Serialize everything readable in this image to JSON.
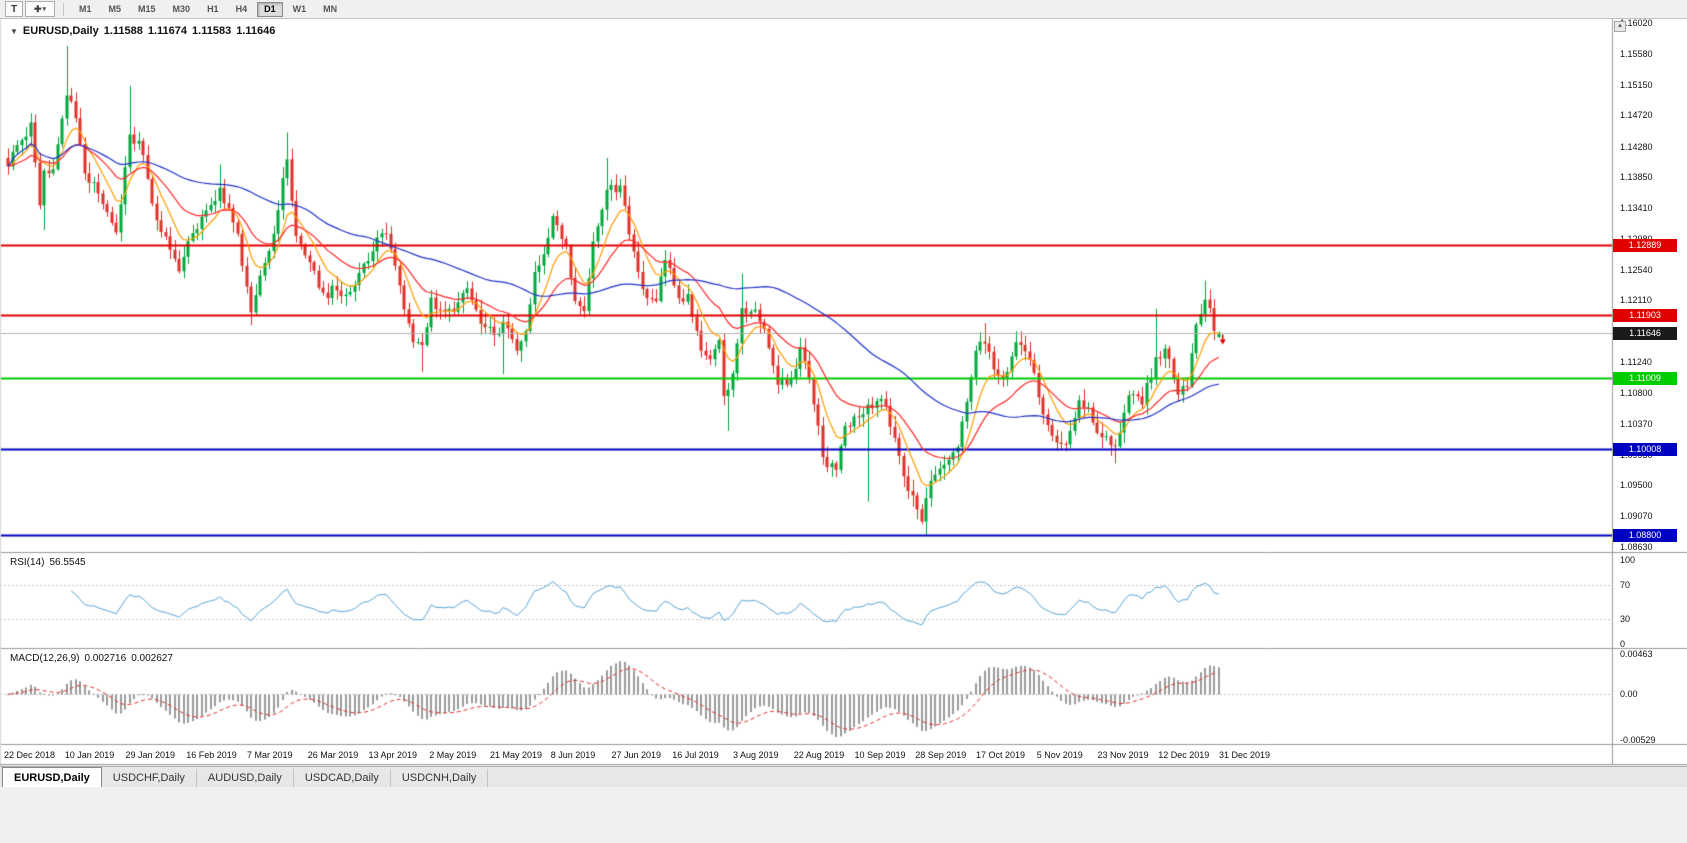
{
  "colors": {
    "candle_up": "#00A83C",
    "candle_down": "#E1312B",
    "background": "#ffffff",
    "chrome": "#f0f0f0",
    "current_price_line": "#b4b4b4"
  },
  "toolbar": {
    "text_tool_label": "T",
    "timeframes": [
      "M1",
      "M5",
      "M15",
      "M30",
      "H1",
      "H4",
      "D1",
      "W1",
      "MN"
    ],
    "active_timeframe": "D1"
  },
  "chart": {
    "title": {
      "symbol": "EURUSD,Daily",
      "open": "1.11588",
      "high": "1.11674",
      "low": "1.11583",
      "close": "1.11646"
    },
    "price_axis_labels": [
      "1.16020",
      "1.15580",
      "1.15150",
      "1.14720",
      "1.14280",
      "1.13850",
      "1.13410",
      "1.12980",
      "1.12540",
      "1.12110",
      "1.11680",
      "1.11240",
      "1.10800",
      "1.10370",
      "1.09930",
      "1.09500",
      "1.09070",
      "1.08630"
    ],
    "levels": [
      {
        "name": "resistance-line-1",
        "price": 1.12889,
        "label": "1.12889",
        "color": "#E00000",
        "width": 2
      },
      {
        "name": "resistance-line-2",
        "price": 1.11903,
        "label": "1.11903",
        "color": "#E00000",
        "width": 2
      },
      {
        "name": "support-line-green",
        "price": 1.11009,
        "label": "1.11009",
        "color": "#00CC00",
        "width": 2
      },
      {
        "name": "support-line-blue-1",
        "price": 1.10008,
        "label": "1.10008",
        "color": "#0000C0",
        "width": 2
      },
      {
        "name": "support-line-blue-2",
        "price": 1.088,
        "label": "1.08800",
        "color": "#0000C0",
        "width": 2
      }
    ],
    "current_price": {
      "value": 1.11646,
      "label": "1.11646",
      "badge_bg": "#1a1a1a"
    }
  },
  "rsi": {
    "name": "RSI(14)",
    "value": "56.5545",
    "axis_labels": [
      "100",
      "70",
      "30",
      "0"
    ],
    "levels": [
      70,
      30
    ],
    "line_color": "#58A6D8"
  },
  "macd": {
    "name": "MACD(12,26,9)",
    "main_value": "0.002716",
    "signal_value": "0.002627",
    "axis_labels": [
      "0.00463",
      "0.00",
      "-0.00529"
    ],
    "histogram_color": "#9B9B9B",
    "signal_color": "#E03131"
  },
  "date_axis": [
    "22 Dec 2018",
    "10 Jan 2019",
    "29 Jan 2019",
    "16 Feb 2019",
    "7 Mar 2019",
    "26 Mar 2019",
    "13 Apr 2019",
    "2 May 2019",
    "21 May 2019",
    "8 Jun 2019",
    "27 Jun 2019",
    "16 Jul 2019",
    "3 Aug 2019",
    "22 Aug 2019",
    "10 Sep 2019",
    "28 Sep 2019",
    "17 Oct 2019",
    "5 Nov 2019",
    "23 Nov 2019",
    "12 Dec 2019",
    "31 Dec 2019"
  ],
  "tabs": [
    {
      "label": "EURUSD,Daily",
      "active": true
    },
    {
      "label": "USDCHF,Daily",
      "active": false
    },
    {
      "label": "AUDUSD,Daily",
      "active": false
    },
    {
      "label": "USDCAD,Daily",
      "active": false
    },
    {
      "label": "USDCNH,Daily",
      "active": false
    }
  ],
  "chart_data": {
    "type": "candlestick",
    "symbol": "EURUSD",
    "timeframe": "D1",
    "bar_count": 270,
    "plot_bar_span": 1215,
    "price_scale": {
      "top": 1.1608,
      "bottom": 1.0856
    },
    "macd_scale": {
      "max": 0.00463,
      "min": -0.00529
    },
    "last_bar": {
      "open": 1.11588,
      "high": 1.11674,
      "low": 1.11583,
      "close": 1.11646
    },
    "close_anchors": [
      [
        0,
        1.14
      ],
      [
        3,
        1.1437
      ],
      [
        5,
        1.1462
      ],
      [
        7,
        1.1345
      ],
      [
        8,
        1.1394
      ],
      [
        10,
        1.1396
      ],
      [
        13,
        1.15
      ],
      [
        15,
        1.1468
      ],
      [
        17,
        1.139
      ],
      [
        20,
        1.1362
      ],
      [
        24,
        1.1307
      ],
      [
        27,
        1.1445
      ],
      [
        29,
        1.1436
      ],
      [
        33,
        1.1324
      ],
      [
        38,
        1.1252
      ],
      [
        40,
        1.1295
      ],
      [
        44,
        1.1338
      ],
      [
        47,
        1.137
      ],
      [
        51,
        1.1305
      ],
      [
        54,
        1.1194
      ],
      [
        56,
        1.1246
      ],
      [
        59,
        1.1305
      ],
      [
        62,
        1.141
      ],
      [
        64,
        1.1302
      ],
      [
        67,
        1.1265
      ],
      [
        70,
        1.1222
      ],
      [
        73,
        1.1225
      ],
      [
        76,
        1.1223
      ],
      [
        79,
        1.1263
      ],
      [
        82,
        1.13
      ],
      [
        84,
        1.1305
      ],
      [
        87,
        1.1232
      ],
      [
        90,
        1.1152
      ],
      [
        92,
        1.1148
      ],
      [
        94,
        1.1215
      ],
      [
        96,
        1.1198
      ],
      [
        99,
        1.1195
      ],
      [
        102,
        1.1228
      ],
      [
        105,
        1.1178
      ],
      [
        108,
        1.1162
      ],
      [
        110,
        1.1181
      ],
      [
        113,
        1.114
      ],
      [
        115,
        1.1168
      ],
      [
        117,
        1.1251
      ],
      [
        119,
        1.1276
      ],
      [
        121,
        1.133
      ],
      [
        124,
        1.1288
      ],
      [
        126,
        1.121
      ],
      [
        128,
        1.1196
      ],
      [
        130,
        1.1294
      ],
      [
        133,
        1.1367
      ],
      [
        136,
        1.1373
      ],
      [
        139,
        1.128
      ],
      [
        141,
        1.1227
      ],
      [
        144,
        1.121
      ],
      [
        146,
        1.1268
      ],
      [
        149,
        1.1214
      ],
      [
        151,
        1.122
      ],
      [
        154,
        1.114
      ],
      [
        156,
        1.1128
      ],
      [
        158,
        1.1155
      ],
      [
        159,
        1.1076
      ],
      [
        160,
        1.1085
      ],
      [
        161,
        1.1108
      ],
      [
        163,
        1.12
      ],
      [
        166,
        1.1198
      ],
      [
        168,
        1.1171
      ],
      [
        171,
        1.1092
      ],
      [
        174,
        1.11
      ],
      [
        176,
        1.1145
      ],
      [
        178,
        1.11
      ],
      [
        181,
        1.099
      ],
      [
        184,
        1.0972
      ],
      [
        186,
        1.1034
      ],
      [
        189,
        1.1046
      ],
      [
        191,
        1.1064
      ],
      [
        194,
        1.1072
      ],
      [
        197,
        1.1017
      ],
      [
        200,
        1.0942
      ],
      [
        203,
        1.0899
      ],
      [
        204,
        1.0932
      ],
      [
        206,
        1.0965
      ],
      [
        208,
        1.0979
      ],
      [
        211,
        1.1004
      ],
      [
        212,
        1.104
      ],
      [
        215,
        1.114
      ],
      [
        217,
        1.115
      ],
      [
        220,
        1.1105
      ],
      [
        222,
        1.111
      ],
      [
        224,
        1.1152
      ],
      [
        227,
        1.1127
      ],
      [
        229,
        1.1074
      ],
      [
        232,
        1.102
      ],
      [
        235,
        1.1008
      ],
      [
        238,
        1.107
      ],
      [
        240,
        1.106
      ],
      [
        243,
        1.1018
      ],
      [
        246,
        1.1005
      ],
      [
        249,
        1.1077
      ],
      [
        252,
        1.1064
      ],
      [
        255,
        1.1131
      ],
      [
        257,
        1.1143
      ],
      [
        260,
        1.1078
      ],
      [
        262,
        1.109
      ],
      [
        264,
        1.1177
      ],
      [
        266,
        1.1212
      ],
      [
        267,
        1.12
      ],
      [
        268,
        1.1168
      ],
      [
        269,
        1.11646
      ]
    ],
    "extreme_wicks": [
      [
        8,
        "low",
        1.131
      ],
      [
        13,
        "high",
        1.157
      ],
      [
        27,
        "high",
        1.1514
      ],
      [
        47,
        "high",
        1.1403
      ],
      [
        54,
        "low",
        1.1176
      ],
      [
        62,
        "high",
        1.1448
      ],
      [
        92,
        "low",
        1.111
      ],
      [
        110,
        "low",
        1.1107
      ],
      [
        133,
        "high",
        1.1412
      ],
      [
        160,
        "low",
        1.1027
      ],
      [
        163,
        "high",
        1.1249
      ],
      [
        191,
        "low",
        1.0927
      ],
      [
        204,
        "low",
        1.0879
      ],
      [
        217,
        "high",
        1.1179
      ],
      [
        246,
        "low",
        1.0981
      ],
      [
        255,
        "high",
        1.1199
      ],
      [
        266,
        "high",
        1.1239
      ]
    ],
    "moving_averages": [
      {
        "name": "fast-ma",
        "period": 8,
        "method": "ema",
        "color": "#FF9D00"
      },
      {
        "name": "medium-ma",
        "period": 21,
        "method": "ema",
        "color": "#FF2A2A"
      },
      {
        "name": "slow-ma",
        "period": 55,
        "method": "sma",
        "color": "#2233CC"
      }
    ],
    "indicators": {
      "rsi": {
        "period": 14,
        "last": 56.5545
      },
      "macd": {
        "fast": 12,
        "slow": 26,
        "signal": 9,
        "last_main": 0.002716,
        "last_signal": 0.002627
      }
    },
    "marker": {
      "type": "arrow-down",
      "price": 1.115,
      "color": "#E00000"
    }
  }
}
